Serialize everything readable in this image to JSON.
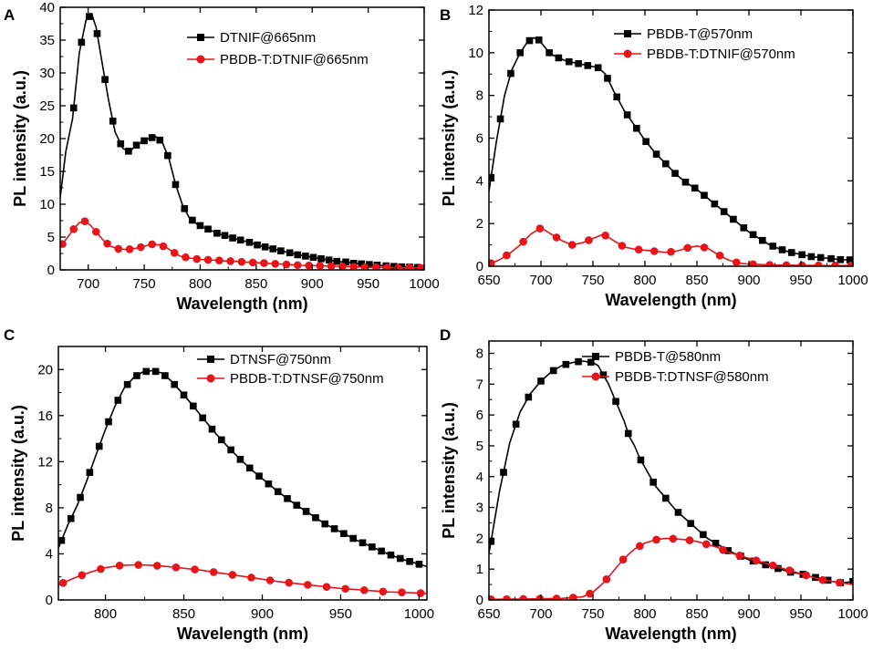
{
  "chart_data": [
    {
      "panel": "A",
      "type": "line",
      "xlabel": "Wavelength (nm)",
      "ylabel": "PL intensity (a.u.)",
      "xlim": [
        675,
        1000
      ],
      "ylim": [
        0,
        40
      ],
      "xticks": [
        700,
        750,
        800,
        850,
        900,
        950,
        1000
      ],
      "yticks": [
        0,
        5,
        10,
        15,
        20,
        25,
        30,
        35,
        40
      ],
      "legend_position": "top-right",
      "series": [
        {
          "name": "DTNIF@665nm",
          "color": "#000000",
          "marker": "square",
          "x": [
            675,
            680,
            686,
            692,
            698,
            703,
            707,
            712,
            718,
            724,
            731,
            737,
            743,
            748,
            754,
            760,
            766,
            772,
            778,
            784,
            790,
            797,
            803,
            810,
            816,
            823,
            830,
            837,
            844,
            851,
            858,
            865,
            872,
            880,
            887,
            894,
            901,
            908,
            915,
            922,
            930,
            937,
            945,
            952,
            960,
            967,
            975,
            982,
            990,
            1000
          ],
          "y": [
            11,
            18,
            23,
            33,
            38,
            39,
            37,
            32,
            26,
            21,
            18.5,
            18,
            19,
            19.5,
            20,
            20.3,
            19.5,
            17,
            13,
            10,
            8,
            7,
            6.5,
            6,
            5.5,
            5.2,
            4.8,
            4.5,
            4.2,
            3.8,
            3.5,
            3.2,
            2.9,
            2.6,
            2.3,
            2.1,
            1.9,
            1.7,
            1.5,
            1.3,
            1.2,
            1.0,
            0.9,
            0.8,
            0.7,
            0.6,
            0.5,
            0.45,
            0.4,
            0.35
          ],
          "marker_x": [
            687,
            694,
            701,
            708,
            715,
            722,
            729,
            736,
            743,
            750,
            757,
            764,
            771,
            778,
            786,
            793,
            800,
            807,
            815,
            822,
            829,
            836,
            844,
            851,
            858,
            865,
            872,
            880,
            887,
            894,
            901,
            908,
            915,
            922,
            930,
            937,
            944,
            951,
            958,
            966,
            973,
            980,
            987,
            994
          ]
        },
        {
          "name": "PBDB-T:DTNIF@665nm",
          "color": "#e8141a",
          "marker": "circle",
          "x": [
            675,
            680,
            686,
            692,
            697,
            702,
            708,
            714,
            720,
            727,
            735,
            743,
            750,
            757,
            764,
            770,
            776,
            782,
            790,
            800,
            810,
            820,
            830,
            840,
            850,
            860,
            870,
            880,
            890,
            900,
            910,
            920,
            930,
            940,
            950,
            960,
            970,
            980,
            990,
            1000
          ],
          "y": [
            3.5,
            4.6,
            6,
            7.2,
            7.4,
            6.8,
            5.6,
            4.4,
            3.6,
            3.2,
            3.1,
            3.3,
            3.6,
            3.9,
            3.8,
            3.4,
            2.7,
            2.1,
            1.8,
            1.6,
            1.5,
            1.4,
            1.3,
            1.2,
            1.1,
            1.0,
            0.9,
            0.8,
            0.7,
            0.65,
            0.6,
            0.55,
            0.5,
            0.45,
            0.4,
            0.4,
            0.35,
            0.3,
            0.3,
            0.3
          ],
          "marker_x": [
            677,
            687,
            697,
            707,
            717,
            727,
            737,
            747,
            757,
            767,
            777,
            787,
            797,
            807,
            817,
            827,
            837,
            847,
            857,
            867,
            877,
            887,
            897,
            907,
            917,
            927,
            937,
            947,
            957,
            967,
            977,
            987,
            997
          ]
        }
      ]
    },
    {
      "panel": "B",
      "type": "line",
      "xlabel": "Wavelength (nm)",
      "ylabel": "PL intensity (a.u.)",
      "xlim": [
        650,
        1000
      ],
      "ylim": [
        0,
        12
      ],
      "xticks": [
        650,
        700,
        750,
        800,
        850,
        900,
        950,
        1000
      ],
      "yticks": [
        0,
        2,
        4,
        6,
        8,
        10,
        12
      ],
      "legend_position": "top-right",
      "series": [
        {
          "name": "PBDB-T@570nm",
          "color": "#000000",
          "marker": "square",
          "x": [
            650,
            657,
            665,
            672,
            680,
            687,
            693,
            698,
            703,
            708,
            715,
            725,
            735,
            745,
            755,
            762,
            770,
            780,
            790,
            800,
            810,
            820,
            830,
            840,
            850,
            860,
            870,
            880,
            890,
            900,
            910,
            920,
            930,
            940,
            950,
            960,
            970,
            980,
            990,
            1000
          ],
          "y": [
            3.5,
            5.8,
            8,
            9.2,
            10,
            10.5,
            10.7,
            10.6,
            10.3,
            10,
            9.8,
            9.6,
            9.5,
            9.4,
            9.3,
            9,
            8.2,
            7.3,
            6.6,
            5.9,
            5.3,
            4.8,
            4.3,
            3.9,
            3.6,
            3.2,
            2.8,
            2.4,
            2.0,
            1.6,
            1.3,
            1.0,
            0.8,
            0.65,
            0.55,
            0.45,
            0.4,
            0.35,
            0.3,
            0.3
          ],
          "marker_x": [
            652,
            661,
            671,
            680,
            689,
            698,
            708,
            717,
            727,
            736,
            745,
            755,
            764,
            773,
            783,
            792,
            801,
            811,
            820,
            829,
            839,
            848,
            857,
            867,
            876,
            885,
            895,
            904,
            913,
            923,
            932,
            941,
            951,
            960,
            969,
            979,
            988,
            997
          ]
        },
        {
          "name": "PBDB-T:DTNIF@570nm",
          "color": "#e8141a",
          "marker": "circle",
          "x": [
            650,
            660,
            670,
            680,
            690,
            700,
            710,
            720,
            730,
            740,
            750,
            760,
            770,
            780,
            790,
            800,
            810,
            820,
            830,
            840,
            850,
            860,
            870,
            880,
            890,
            900,
            910,
            920,
            930,
            940,
            950,
            960,
            970,
            980,
            990,
            1000
          ],
          "y": [
            0.1,
            0.3,
            0.6,
            1.0,
            1.5,
            1.8,
            1.5,
            1.2,
            1.0,
            1.1,
            1.3,
            1.5,
            1.2,
            0.9,
            0.8,
            0.75,
            0.7,
            0.65,
            0.7,
            0.85,
            0.95,
            0.85,
            0.55,
            0.3,
            0.15,
            0.1,
            0.08,
            0.06,
            0.05,
            0.05,
            0.04,
            0.04,
            0.03,
            0.03,
            0.03,
            0.03
          ],
          "marker_x": [
            652,
            667,
            683,
            699,
            715,
            730,
            746,
            762,
            778,
            794,
            809,
            825,
            841,
            857,
            872,
            888,
            904,
            920,
            936,
            951,
            967,
            983,
            998
          ]
        }
      ]
    },
    {
      "panel": "C",
      "type": "line",
      "xlabel": "Wavelength (nm)",
      "ylabel": "PL intensity (a.u.)",
      "xlim": [
        770,
        1005
      ],
      "ylim": [
        0,
        22
      ],
      "xticks": [
        800,
        850,
        900,
        950,
        1000
      ],
      "yticks": [
        0,
        4,
        8,
        12,
        16,
        20
      ],
      "legend_position": "top-right",
      "series": [
        {
          "name": "DTNSF@750nm",
          "color": "#000000",
          "marker": "square",
          "x": [
            770,
            776,
            782,
            788,
            794,
            800,
            806,
            812,
            818,
            824,
            830,
            836,
            842,
            848,
            855,
            862,
            870,
            878,
            886,
            894,
            902,
            910,
            920,
            930,
            940,
            950,
            960,
            970,
            980,
            990,
            1000,
            1005
          ],
          "y": [
            4.5,
            6.5,
            8.2,
            10.3,
            12.6,
            14.8,
            16.8,
            18.4,
            19.3,
            19.8,
            19.9,
            19.7,
            19.0,
            18.1,
            17.0,
            15.8,
            14.5,
            13.3,
            12.2,
            11.2,
            10.3,
            9.4,
            8.4,
            7.5,
            6.6,
            5.9,
            5.2,
            4.6,
            4.0,
            3.5,
            3.1,
            2.9
          ],
          "marker_x": [
            772,
            778,
            784,
            790,
            796,
            802,
            808,
            814,
            820,
            826,
            832,
            838,
            844,
            850,
            856,
            862,
            868,
            874,
            880,
            886,
            892,
            898,
            904,
            910,
            916,
            922,
            928,
            934,
            940,
            946,
            952,
            958,
            964,
            970,
            976,
            982,
            988,
            994,
            1000
          ]
        },
        {
          "name": "PBDB-T:DTNSF@750nm",
          "color": "#e8141a",
          "marker": "circle",
          "x": [
            770,
            780,
            790,
            800,
            810,
            820,
            830,
            840,
            850,
            860,
            870,
            880,
            890,
            900,
            910,
            920,
            930,
            940,
            950,
            960,
            970,
            980,
            990,
            1000,
            1005
          ],
          "y": [
            1.3,
            1.9,
            2.4,
            2.8,
            3.0,
            3.05,
            3.0,
            2.9,
            2.75,
            2.6,
            2.4,
            2.2,
            2.0,
            1.8,
            1.6,
            1.45,
            1.3,
            1.15,
            1.0,
            0.9,
            0.8,
            0.7,
            0.65,
            0.6,
            0.55
          ],
          "marker_x": [
            773,
            785,
            797,
            809,
            821,
            833,
            845,
            857,
            869,
            881,
            893,
            905,
            917,
            929,
            941,
            953,
            965,
            977,
            989,
            1001
          ]
        }
      ]
    },
    {
      "panel": "D",
      "type": "line",
      "xlabel": "Wavelength (nm)",
      "ylabel": "PL intensity (a.u.)",
      "xlim": [
        650,
        1000
      ],
      "ylim": [
        0,
        8.4
      ],
      "xticks": [
        650,
        700,
        750,
        800,
        850,
        900,
        950,
        1000
      ],
      "yticks": [
        0,
        1,
        2,
        3,
        4,
        5,
        6,
        7,
        8
      ],
      "legend_position": "top-right",
      "series": [
        {
          "name": "PBDB-T@580nm",
          "color": "#000000",
          "marker": "square",
          "x": [
            650,
            660,
            670,
            680,
            690,
            700,
            710,
            720,
            730,
            740,
            750,
            755,
            760,
            765,
            770,
            775,
            780,
            785,
            790,
            795,
            800,
            805,
            810,
            815,
            820,
            830,
            840,
            850,
            860,
            870,
            880,
            890,
            900,
            910,
            920,
            930,
            940,
            950,
            960,
            970,
            980,
            990,
            1000
          ],
          "y": [
            1.5,
            3.5,
            5.1,
            6.1,
            6.7,
            7.1,
            7.4,
            7.6,
            7.7,
            7.75,
            7.7,
            7.6,
            7.3,
            7.0,
            6.6,
            6.2,
            5.8,
            5.3,
            5.0,
            4.6,
            4.3,
            4.0,
            3.7,
            3.5,
            3.3,
            2.9,
            2.6,
            2.3,
            2.0,
            1.8,
            1.6,
            1.45,
            1.3,
            1.2,
            1.1,
            1.0,
            0.9,
            0.85,
            0.75,
            0.7,
            0.6,
            0.55,
            0.6
          ],
          "marker_x": [
            652,
            664,
            676,
            688,
            700,
            712,
            724,
            736,
            748,
            760,
            772,
            784,
            796,
            808,
            820,
            832,
            844,
            856,
            868,
            880,
            892,
            904,
            916,
            928,
            940,
            952,
            964,
            976,
            988,
            1000
          ]
        },
        {
          "name": "PBDB-T:DTNSF@580nm",
          "color": "#e8141a",
          "marker": "circle",
          "x": [
            650,
            680,
            720,
            740,
            750,
            760,
            770,
            780,
            790,
            800,
            810,
            820,
            830,
            840,
            850,
            860,
            870,
            880,
            890,
            900,
            910,
            920,
            930,
            940,
            950,
            960,
            970,
            980,
            990,
            1000
          ],
          "y": [
            0.02,
            0.03,
            0.05,
            0.1,
            0.25,
            0.55,
            0.95,
            1.35,
            1.65,
            1.85,
            1.95,
            2.0,
            1.98,
            1.95,
            1.9,
            1.8,
            1.7,
            1.55,
            1.45,
            1.35,
            1.25,
            1.15,
            1.05,
            0.95,
            0.85,
            0.75,
            0.65,
            0.6,
            0.55,
            0.5
          ],
          "marker_x": [
            652,
            667,
            683,
            699,
            715,
            731,
            747,
            763,
            779,
            795,
            811,
            827,
            843,
            859,
            875,
            891,
            907,
            923,
            939,
            955,
            971,
            987
          ]
        }
      ]
    }
  ]
}
